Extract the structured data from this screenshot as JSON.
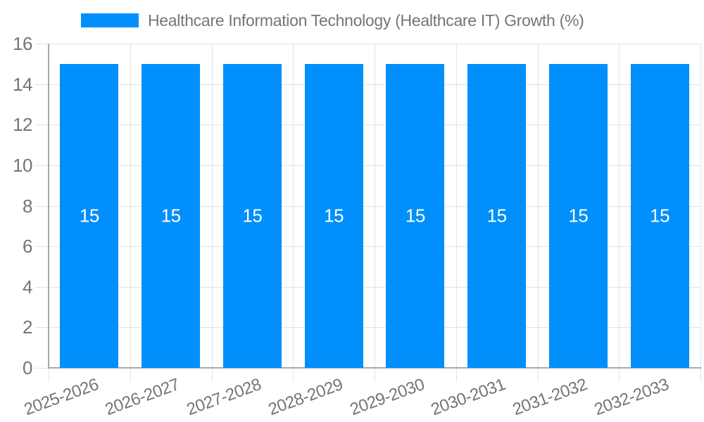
{
  "legend": {
    "label": "Healthcare Information Technology (Healthcare IT) Growth (%)"
  },
  "colors": {
    "bar": "#008FFB",
    "axis_text": "#757575",
    "legend_text": "#757575",
    "grid_line": "#e2e2e2",
    "axis_line": "#a8a8a8",
    "value_label_text": "#ffffff",
    "background": "#ffffff"
  },
  "chart_data": {
    "type": "bar",
    "title": "",
    "xlabel": "",
    "ylabel": "",
    "legend_position": "top",
    "grid": true,
    "categories": [
      "2025-2026",
      "2026-2027",
      "2027-2028",
      "2028-2029",
      "2029-2030",
      "2030-2031",
      "2031-2032",
      "2032-2033"
    ],
    "series": [
      {
        "name": "Healthcare Information Technology (Healthcare IT) Growth (%)",
        "values": [
          15,
          15,
          15,
          15,
          15,
          15,
          15,
          15
        ]
      }
    ],
    "data_labels": [
      "15",
      "15",
      "15",
      "15",
      "15",
      "15",
      "15",
      "15"
    ],
    "ylim": [
      0,
      16
    ],
    "yticks": [
      0,
      2,
      4,
      6,
      8,
      10,
      12,
      14,
      16
    ],
    "xtick_rotation_deg": -20
  }
}
